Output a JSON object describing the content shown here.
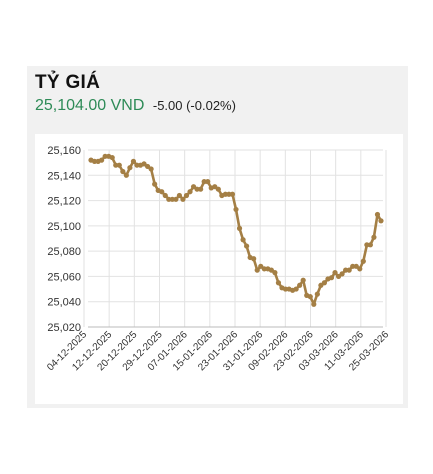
{
  "header": {
    "title": "TỶ GIÁ",
    "rate": "25,104.00 VND",
    "change": "-5.00 (-0.02%)"
  },
  "colors": {
    "line": "#a47f45",
    "rate": "#2e8b57",
    "grid": "#e2e2e2"
  },
  "chart_data": {
    "type": "line",
    "grid": true,
    "ylim": [
      25020,
      25160
    ],
    "yticks": [
      25020,
      25040,
      25060,
      25080,
      25100,
      25120,
      25140,
      25160
    ],
    "ytick_labels": [
      "25,020",
      "25,040",
      "25,060",
      "25,080",
      "25,100",
      "25,120",
      "25,140",
      "25,160"
    ],
    "xtick_labels": [
      "04-12-2025",
      "12-12-2025",
      "20-12-2025",
      "29-12-2025",
      "07-01-2026",
      "15-01-2026",
      "23-01-2026",
      "31-01-2026",
      "09-02-2026",
      "23-02-2026",
      "03-03-2026",
      "11-03-2026",
      "25-03-2026"
    ],
    "values": [
      25152,
      25151,
      25151,
      25152,
      25155,
      25155,
      25154,
      25148,
      25148,
      25143,
      25140,
      25146,
      25151,
      25148,
      25148,
      25149,
      25147,
      25145,
      25133,
      25128,
      25127,
      25124,
      25121,
      25121,
      25121,
      25124,
      25121,
      25124,
      25127,
      25131,
      25129,
      25129,
      25135,
      25135,
      25130,
      25131,
      25129,
      25124,
      25125,
      25125,
      25125,
      25113,
      25098,
      25089,
      25084,
      25075,
      25074,
      25065,
      25068,
      25066,
      25066,
      25065,
      25063,
      25055,
      25051,
      25050,
      25050,
      25049,
      25050,
      25053,
      25057,
      25045,
      25044,
      25038,
      25046,
      25053,
      25055,
      25058,
      25059,
      25063,
      25060,
      25062,
      25065,
      25065,
      25068,
      25068,
      25066,
      25072,
      25085,
      25085,
      25091,
      25109,
      25104
    ]
  }
}
